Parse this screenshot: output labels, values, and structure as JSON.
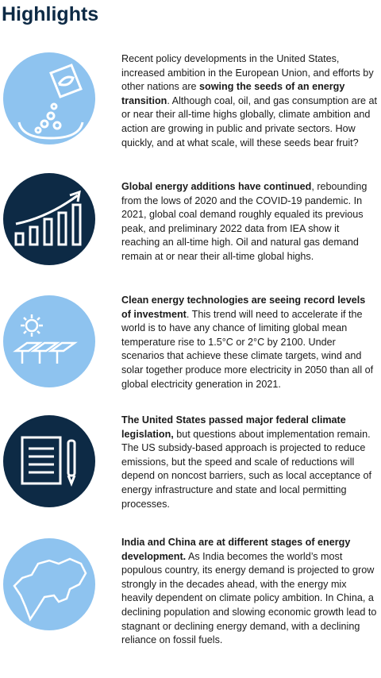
{
  "header": {
    "title": "Highlights"
  },
  "items": [
    {
      "text_before": "Recent policy developments in the United States, increased ambition in the European Union, and efforts by other nations are ",
      "bold": "sowing the seeds of an energy transition",
      "text_after": ". Although coal, oil, and gas consumption are at or near their all-time highs globally, climate ambition and action are growing in public and private sectors. How quickly, and at what scale, will these seeds bear fruit?"
    },
    {
      "bold": "Global energy additions have continued",
      "text_after": ", rebounding from the lows of 2020 and the COVID-19 pandemic. In 2021, global coal demand roughly equaled its previous peak, and preliminary 2022 data from IEA show it reaching an all-time high. Oil and natural gas demand remain at or near their all-time global highs."
    },
    {
      "bold": "Clean energy technologies are seeing record levels of investment",
      "text_after": ". This trend will need to accelerate if the world is to have any chance of limiting global mean temperature rise to 1.5°C or 2°C by 2100. Under scenarios that achieve these climate targets, wind and solar together produce more electricity in 2050 than all of global electricity generation in 2021."
    },
    {
      "bold": "The United States passed major federal climate legislation,",
      "text_after": " but questions about implementation remain. The US subsidy-based approach is projected to reduce emissions, but the speed and scale of reductions will depend on noncost barriers, such as local acceptance of energy infrastructure and state and local permitting processes."
    },
    {
      "bold": "India and China are at different stages of energy development.",
      "text_after": " As India becomes the world’s most populous country, its energy demand is projected to grow strongly in the decades ahead, with the energy mix heavily dependent on climate policy ambition. In China, a declining population and slowing economic growth lead to stagnant or declining energy demand, with a declining reliance on fossil fuels."
    }
  ]
}
